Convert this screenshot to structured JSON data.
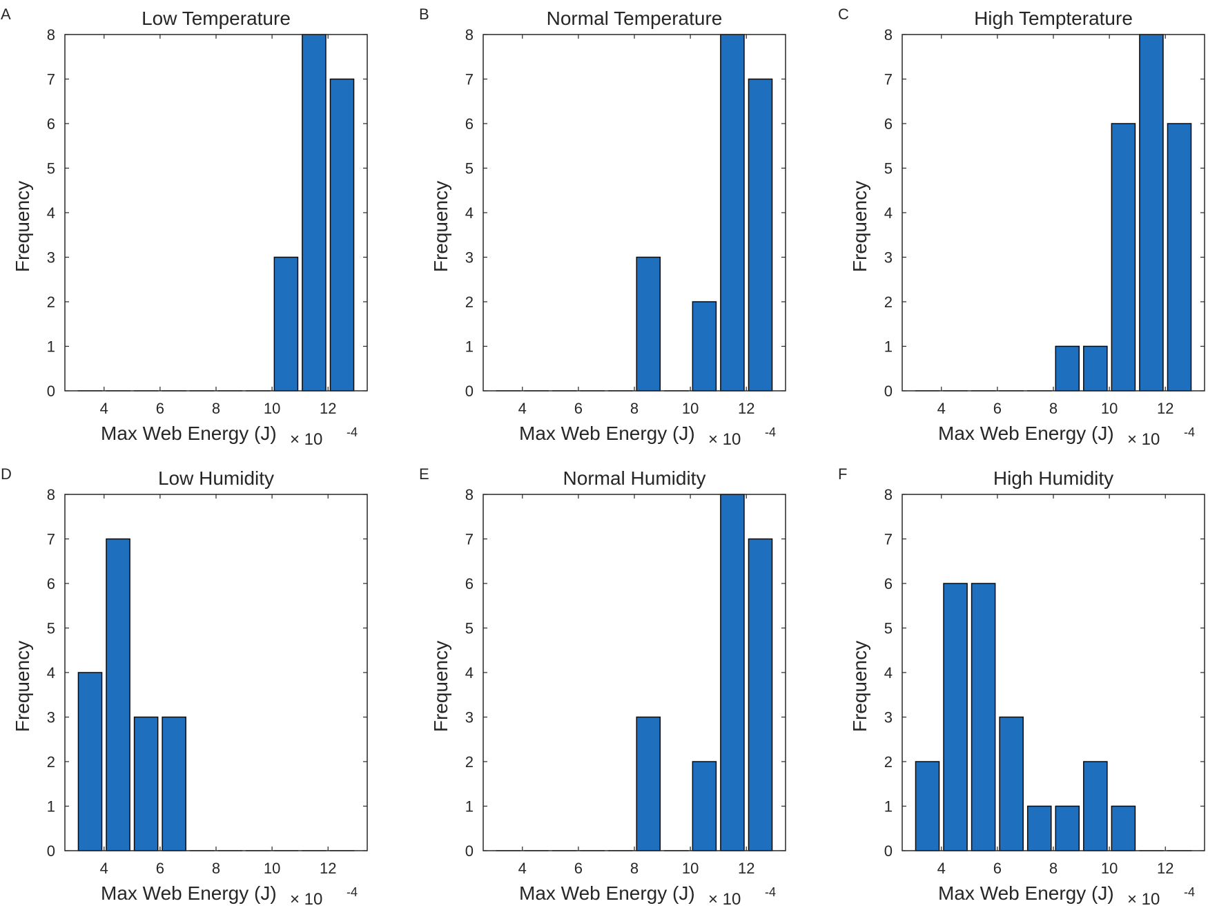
{
  "chart_data": [
    {
      "panel_label": "A",
      "type": "bar",
      "title": "Low Temperature",
      "xlabel": "Max Web Energy (J)",
      "x_exponent": "× 10",
      "x_exponent_power": "-4",
      "ylabel": "Frequency",
      "xlim": [
        2.6,
        13.4
      ],
      "ylim": [
        0,
        8
      ],
      "xticks": [
        4,
        6,
        8,
        10,
        12
      ],
      "yticks": [
        0,
        1,
        2,
        3,
        4,
        5,
        6,
        7,
        8
      ],
      "x": [
        3.5,
        4.5,
        5.5,
        6.5,
        7.5,
        8.5,
        9.5,
        10.5,
        11.5,
        12.5
      ],
      "values": [
        0,
        0,
        0,
        0,
        0,
        0,
        0,
        3,
        8,
        7
      ],
      "bar_color": "#1f6fbf",
      "grid": false
    },
    {
      "panel_label": "B",
      "type": "bar",
      "title": "Normal Temperature",
      "xlabel": "Max Web Energy (J)",
      "x_exponent": "× 10",
      "x_exponent_power": "-4",
      "ylabel": "Frequency",
      "xlim": [
        2.6,
        13.4
      ],
      "ylim": [
        0,
        8
      ],
      "xticks": [
        4,
        6,
        8,
        10,
        12
      ],
      "yticks": [
        0,
        1,
        2,
        3,
        4,
        5,
        6,
        7,
        8
      ],
      "x": [
        3.5,
        4.5,
        5.5,
        6.5,
        7.5,
        8.5,
        9.5,
        10.5,
        11.5,
        12.5
      ],
      "values": [
        0,
        0,
        0,
        0,
        0,
        3,
        0,
        2,
        8,
        7
      ],
      "bar_color": "#1f6fbf",
      "grid": false
    },
    {
      "panel_label": "C",
      "type": "bar",
      "title": "High Tempterature",
      "xlabel": "Max Web Energy (J)",
      "x_exponent": "× 10",
      "x_exponent_power": "-4",
      "ylabel": "Frequency",
      "xlim": [
        2.6,
        13.4
      ],
      "ylim": [
        0,
        8
      ],
      "xticks": [
        4,
        6,
        8,
        10,
        12
      ],
      "yticks": [
        0,
        1,
        2,
        3,
        4,
        5,
        6,
        7,
        8
      ],
      "x": [
        3.5,
        4.5,
        5.5,
        6.5,
        7.5,
        8.5,
        9.5,
        10.5,
        11.5,
        12.5
      ],
      "values": [
        0,
        0,
        0,
        0,
        0,
        1,
        1,
        6,
        8,
        6
      ],
      "bar_color": "#1f6fbf",
      "grid": false
    },
    {
      "panel_label": "D",
      "type": "bar",
      "title": "Low Humidity",
      "xlabel": "Max Web Energy (J)",
      "x_exponent": "× 10",
      "x_exponent_power": "-4",
      "ylabel": "Frequency",
      "xlim": [
        2.6,
        13.4
      ],
      "ylim": [
        0,
        8
      ],
      "xticks": [
        4,
        6,
        8,
        10,
        12
      ],
      "yticks": [
        0,
        1,
        2,
        3,
        4,
        5,
        6,
        7,
        8
      ],
      "x": [
        3.5,
        4.5,
        5.5,
        6.5,
        7.5,
        8.5,
        9.5,
        10.5,
        11.5,
        12.5
      ],
      "values": [
        4,
        7,
        3,
        3,
        0,
        0,
        0,
        0,
        0,
        0
      ],
      "bar_color": "#1f6fbf",
      "grid": false
    },
    {
      "panel_label": "E",
      "type": "bar",
      "title": "Normal Humidity",
      "xlabel": "Max Web Energy (J)",
      "x_exponent": "× 10",
      "x_exponent_power": "-4",
      "ylabel": "Frequency",
      "xlim": [
        2.6,
        13.4
      ],
      "ylim": [
        0,
        8
      ],
      "xticks": [
        4,
        6,
        8,
        10,
        12
      ],
      "yticks": [
        0,
        1,
        2,
        3,
        4,
        5,
        6,
        7,
        8
      ],
      "x": [
        3.5,
        4.5,
        5.5,
        6.5,
        7.5,
        8.5,
        9.5,
        10.5,
        11.5,
        12.5
      ],
      "values": [
        0,
        0,
        0,
        0,
        0,
        3,
        0,
        2,
        8,
        7
      ],
      "bar_color": "#1f6fbf",
      "grid": false
    },
    {
      "panel_label": "F",
      "type": "bar",
      "title": "High Humidity",
      "xlabel": "Max Web Energy (J)",
      "x_exponent": "× 10",
      "x_exponent_power": "-4",
      "ylabel": "Frequency",
      "xlim": [
        2.6,
        13.4
      ],
      "ylim": [
        0,
        8
      ],
      "xticks": [
        4,
        6,
        8,
        10,
        12
      ],
      "yticks": [
        0,
        1,
        2,
        3,
        4,
        5,
        6,
        7,
        8
      ],
      "x": [
        3.5,
        4.5,
        5.5,
        6.5,
        7.5,
        8.5,
        9.5,
        10.5,
        11.5,
        12.5
      ],
      "values": [
        2,
        6,
        6,
        3,
        1,
        1,
        2,
        1,
        0,
        0
      ],
      "bar_color": "#1f6fbf",
      "grid": false
    }
  ]
}
